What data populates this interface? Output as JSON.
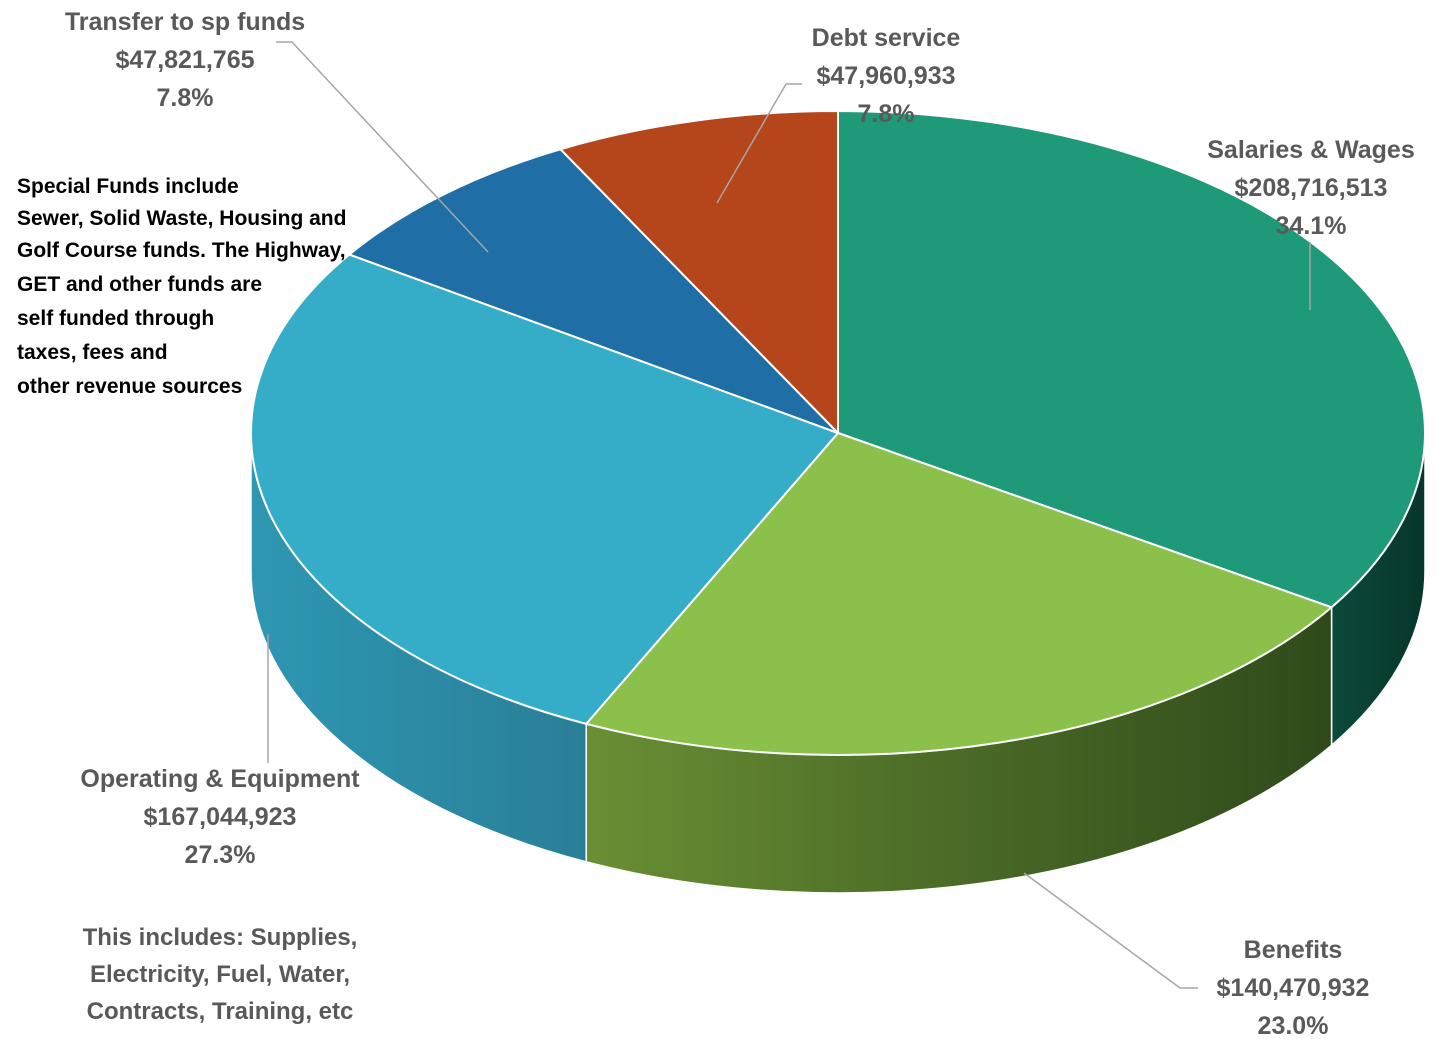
{
  "chart_data": {
    "type": "pie",
    "title": "",
    "three_d": true,
    "slices": [
      {
        "key": "salaries",
        "label": "Salaries & Wages",
        "amount": "$208,716,513",
        "value": 208716513,
        "percent": "34.1%",
        "color": "#1f9a78"
      },
      {
        "key": "benefits",
        "label": "Benefits",
        "amount": "$140,470,932",
        "value": 140470932,
        "percent": "23.0%",
        "color": "#8bc04a"
      },
      {
        "key": "operating",
        "label": "Operating & Equipment",
        "amount": "$167,044,923",
        "value": 167044923,
        "percent": "27.3%",
        "color": "#35adc9"
      },
      {
        "key": "transfer",
        "label": "Transfer to sp funds",
        "amount": "$47,821,765",
        "value": 47821765,
        "percent": "7.8%",
        "color": "#1f6ea6"
      },
      {
        "key": "debt",
        "label": "Debt service",
        "amount": "$47,960,933",
        "value": 47960933,
        "percent": "7.8%",
        "color": "#b5451b"
      }
    ],
    "notes": {
      "special_funds": [
        "Special Funds include",
        "Sewer, Solid Waste, Housing and",
        "Golf Course funds.  The Highway,",
        "GET and other funds are",
        "self funded through",
        "taxes, fees and",
        "other revenue sources"
      ],
      "operating_includes": [
        "This includes: Supplies,",
        "Electricity, Fuel, Water,",
        "Contracts, Training, etc"
      ]
    }
  }
}
